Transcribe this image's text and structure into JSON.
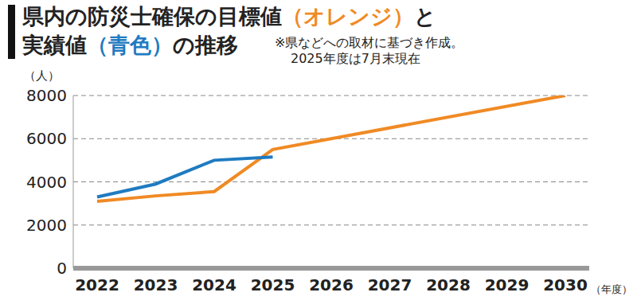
{
  "chart_data": {
    "type": "line",
    "title": [
      "県内の防災士確保の目標値（オレンジ）と",
      "実績値（青色）の推移"
    ],
    "note": [
      "※県などへの取材に基づき作成。",
      "2025年度は7月末現在"
    ],
    "y_label": "（人）",
    "x_label": "（年度）",
    "categories": [
      "2022",
      "2023",
      "2024",
      "2025",
      "2026",
      "2027",
      "2028",
      "2029",
      "2030"
    ],
    "series": [
      {
        "name": "目標値",
        "color": "#f08a24",
        "values": [
          3100,
          3350,
          3550,
          5500,
          null,
          null,
          null,
          null,
          8000
        ]
      },
      {
        "name": "実績値",
        "color": "#1f7bc1",
        "values": [
          3300,
          3900,
          5000,
          5150,
          null,
          null,
          null,
          null,
          null
        ]
      }
    ],
    "ylim": [
      0,
      8000
    ],
    "yticks": [
      0,
      2000,
      4000,
      6000,
      8000
    ],
    "grid": true
  }
}
